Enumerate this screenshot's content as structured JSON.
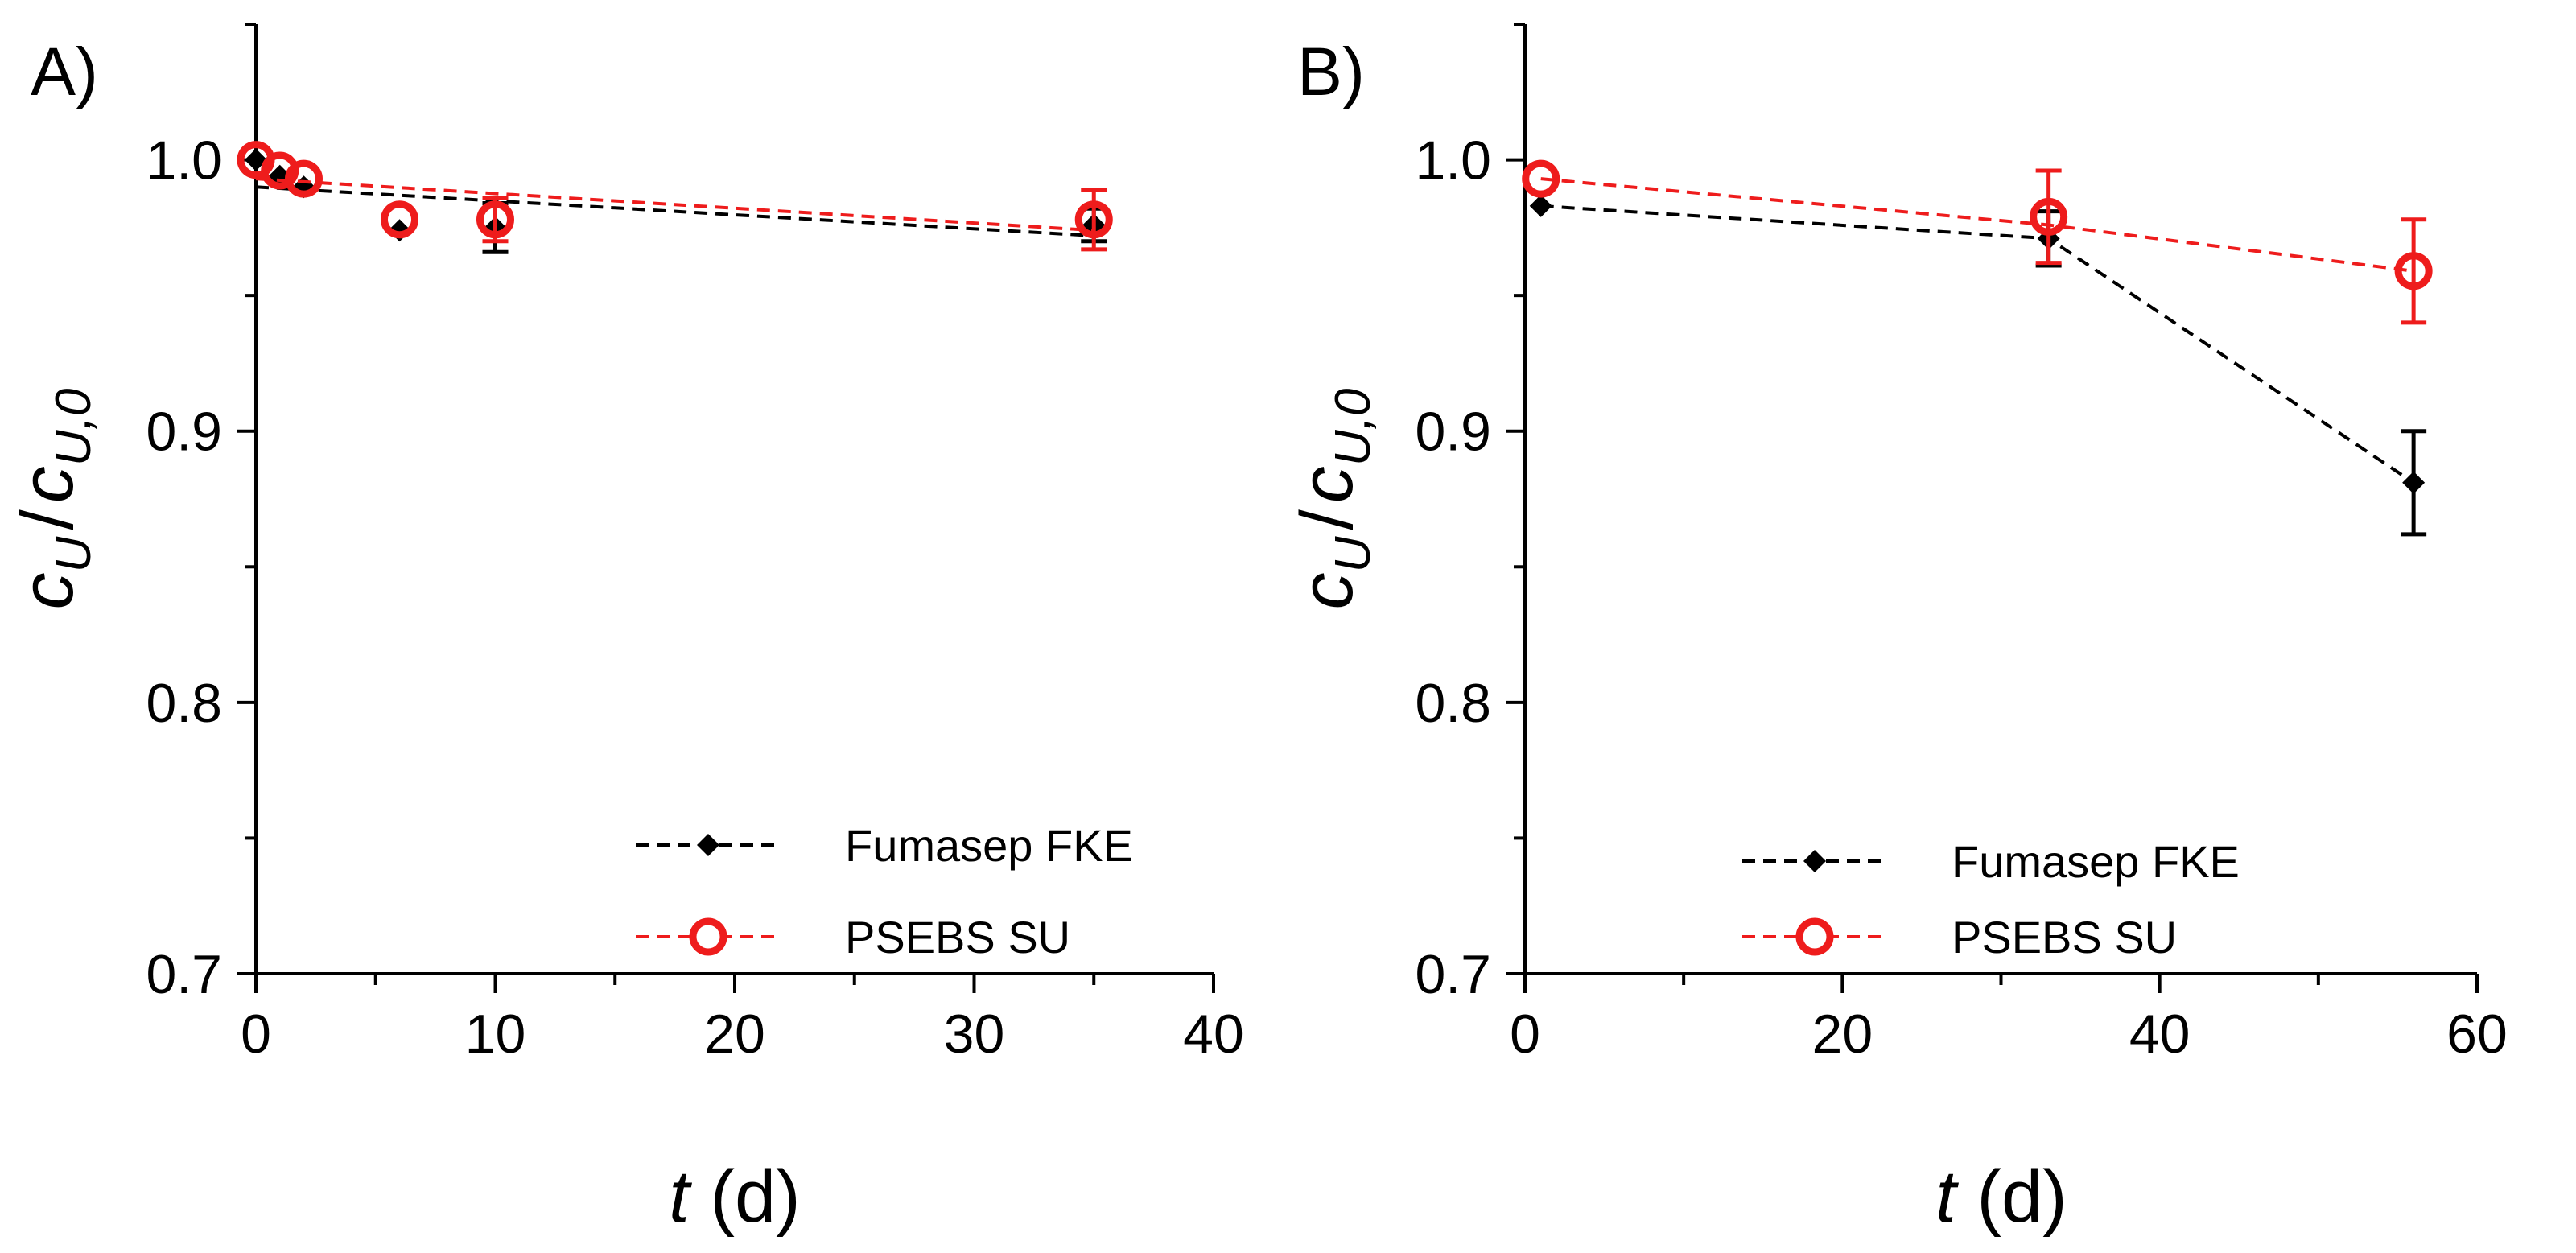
{
  "chart_data": [
    {
      "type": "scatter",
      "panel_label": "A)",
      "xlabel": {
        "var": "t",
        "unit": " (d)"
      },
      "ylabel": {
        "main": "c",
        "sub": "U",
        "sep": "/",
        "main2": "c",
        "sub2": "U,0"
      },
      "xlim": [
        0,
        40
      ],
      "ylim": [
        0.7,
        1.05
      ],
      "xticks": [
        0,
        10,
        20,
        30,
        40
      ],
      "xtick_labels": [
        "0",
        "10",
        "20",
        "30",
        "40"
      ],
      "yticks": [
        0.7,
        0.8,
        0.9,
        1.0
      ],
      "ytick_labels": [
        "0.7",
        "0.8",
        "0.9",
        "1.0"
      ],
      "legend_position": "bottom-right",
      "series": [
        {
          "name": "Fumasep FKE",
          "color": "#000000",
          "marker": "diamond",
          "points": [
            {
              "x": 0,
              "y": 1.0,
              "err": 0.0
            },
            {
              "x": 1,
              "y": 0.994,
              "err": 0.0
            },
            {
              "x": 2,
              "y": 0.99,
              "err": 0.0
            },
            {
              "x": 6,
              "y": 0.974,
              "err": 0.0
            },
            {
              "x": 10,
              "y": 0.975,
              "err": 0.009
            },
            {
              "x": 35,
              "y": 0.976,
              "err": 0.006
            }
          ],
          "fit": [
            {
              "x": 0,
              "y": 0.99
            },
            {
              "x": 35,
              "y": 0.972
            }
          ]
        },
        {
          "name": "PSEBS SU",
          "color": "#ee1c1c",
          "marker": "open-circle",
          "points": [
            {
              "x": 0,
              "y": 1.0,
              "err": 0.0
            },
            {
              "x": 1,
              "y": 0.996,
              "err": 0.0
            },
            {
              "x": 2,
              "y": 0.993,
              "err": 0.0
            },
            {
              "x": 6,
              "y": 0.978,
              "err": 0.0
            },
            {
              "x": 10,
              "y": 0.978,
              "err": 0.008
            },
            {
              "x": 35,
              "y": 0.978,
              "err": 0.011
            }
          ],
          "fit": [
            {
              "x": 0,
              "y": 0.993
            },
            {
              "x": 35,
              "y": 0.974
            }
          ]
        }
      ]
    },
    {
      "type": "scatter",
      "panel_label": "B)",
      "xlabel": {
        "var": "t",
        "unit": " (d)"
      },
      "ylabel": {
        "main": "c",
        "sub": "U",
        "sep": "/",
        "main2": "c",
        "sub2": "U,0"
      },
      "xlim": [
        0,
        60
      ],
      "ylim": [
        0.7,
        1.05
      ],
      "xticks": [
        0,
        20,
        40,
        60
      ],
      "xtick_labels": [
        "0",
        "20",
        "40",
        "60"
      ],
      "yticks": [
        0.7,
        0.8,
        0.9,
        1.0
      ],
      "ytick_labels": [
        "0.7",
        "0.8",
        "0.9",
        "1.0"
      ],
      "legend_position": "bottom-right",
      "series": [
        {
          "name": "Fumasep FKE",
          "color": "#000000",
          "marker": "diamond",
          "points": [
            {
              "x": 1,
              "y": 0.983,
              "err": 0.0
            },
            {
              "x": 33,
              "y": 0.971,
              "err": 0.01
            },
            {
              "x": 56,
              "y": 0.881,
              "err": 0.019
            }
          ],
          "fit": [
            {
              "x": 1,
              "y": 0.983
            },
            {
              "x": 33,
              "y": 0.971
            },
            {
              "x": 56,
              "y": 0.881
            }
          ]
        },
        {
          "name": "PSEBS SU",
          "color": "#ee1c1c",
          "marker": "open-circle",
          "points": [
            {
              "x": 1,
              "y": 0.993,
              "err": 0.0
            },
            {
              "x": 33,
              "y": 0.979,
              "err": 0.017
            },
            {
              "x": 56,
              "y": 0.959,
              "err": 0.019
            }
          ],
          "fit": [
            {
              "x": 1,
              "y": 0.993
            },
            {
              "x": 33,
              "y": 0.976
            },
            {
              "x": 56,
              "y": 0.959
            }
          ]
        }
      ]
    }
  ]
}
